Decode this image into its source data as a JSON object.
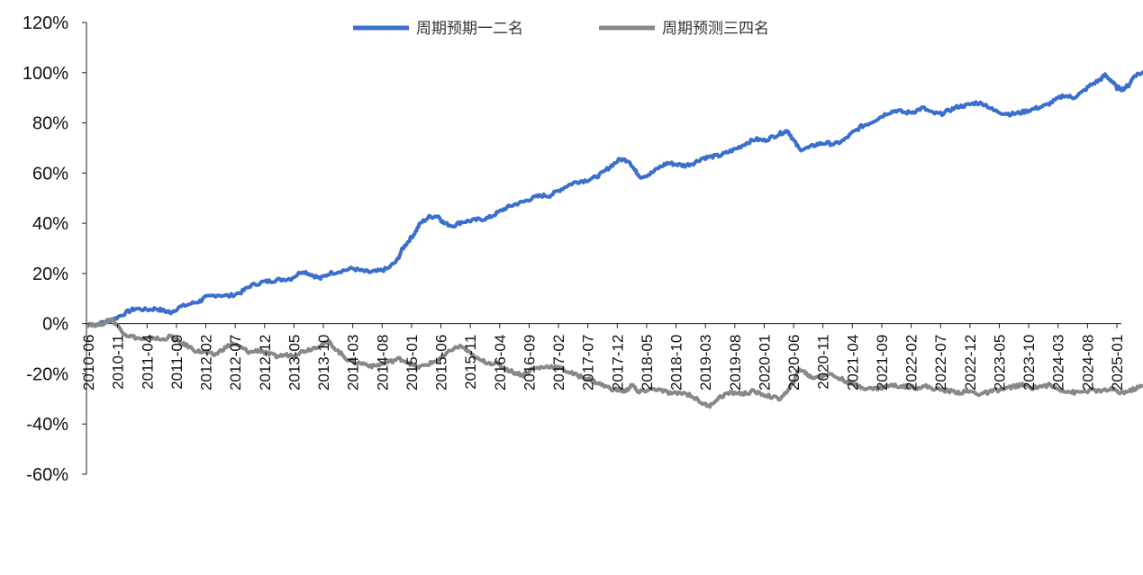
{
  "chart_data": {
    "type": "line",
    "title": "",
    "xlabel": "",
    "ylabel": "",
    "ylim": [
      -60,
      120
    ],
    "y_ticks": [
      120,
      100,
      80,
      60,
      40,
      20,
      0,
      -20,
      -40,
      -60
    ],
    "y_tick_labels": [
      "120%",
      "100%",
      "80%",
      "60%",
      "40%",
      "20%",
      "0%",
      "-20%",
      "-40%",
      "-60%"
    ],
    "x_tick_labels": [
      "2010-06",
      "2010-11",
      "2011-04",
      "2011-09",
      "2012-02",
      "2012-07",
      "2012-12",
      "2013-05",
      "2013-10",
      "2014-03",
      "2014-08",
      "2015-01",
      "2015-06",
      "2015-11",
      "2016-04",
      "2016-09",
      "2017-02",
      "2017-07",
      "2017-12",
      "2018-05",
      "2018-10",
      "2019-03",
      "2019-08",
      "2020-01",
      "2020-06",
      "2020-11",
      "2021-04",
      "2021-09",
      "2022-02",
      "2022-07",
      "2022-12",
      "2023-05",
      "2023-10",
      "2024-03",
      "2024-08",
      "2025-01"
    ],
    "legend_position": "top-center",
    "series": [
      {
        "name": "周期预期一二名",
        "color": "#3A6FCE",
        "points": [
          [
            0,
            0
          ],
          [
            0.3,
            -0.5
          ],
          [
            0.6,
            1
          ],
          [
            0.9,
            2
          ],
          [
            1.3,
            4.5
          ],
          [
            1.6,
            6
          ],
          [
            2,
            5.5
          ],
          [
            2.3,
            6
          ],
          [
            2.6,
            5
          ],
          [
            2.8,
            4.5
          ],
          [
            3.1,
            6.5
          ],
          [
            3.5,
            8
          ],
          [
            3.8,
            9
          ],
          [
            4,
            10.5
          ],
          [
            4.4,
            11.5
          ],
          [
            4.8,
            11
          ],
          [
            5.2,
            12.5
          ],
          [
            5.5,
            15
          ],
          [
            5.9,
            16.5
          ],
          [
            6.2,
            17
          ],
          [
            6.5,
            17.5
          ],
          [
            6.9,
            18
          ],
          [
            7.3,
            21
          ],
          [
            7.6,
            19.5
          ],
          [
            7.9,
            18
          ],
          [
            8.2,
            20
          ],
          [
            8.6,
            21
          ],
          [
            9,
            22
          ],
          [
            9.3,
            21
          ],
          [
            9.6,
            20.5
          ],
          [
            9.9,
            21
          ],
          [
            10.2,
            22
          ],
          [
            10.5,
            25
          ],
          [
            10.7,
            30
          ],
          [
            10.9,
            33
          ],
          [
            11.1,
            36
          ],
          [
            11.3,
            40
          ],
          [
            11.6,
            42.5
          ],
          [
            11.9,
            43
          ],
          [
            12.1,
            40
          ],
          [
            12.4,
            39
          ],
          [
            12.7,
            40.5
          ],
          [
            13,
            41
          ],
          [
            13.3,
            41.5
          ],
          [
            13.6,
            42
          ],
          [
            13.9,
            44
          ],
          [
            14.2,
            46
          ],
          [
            14.5,
            47.5
          ],
          [
            14.8,
            48.5
          ],
          [
            15.1,
            50
          ],
          [
            15.4,
            51
          ],
          [
            15.7,
            51
          ],
          [
            16,
            53
          ],
          [
            16.3,
            55
          ],
          [
            16.6,
            56.5
          ],
          [
            16.9,
            57
          ],
          [
            17.2,
            58
          ],
          [
            17.5,
            60
          ],
          [
            17.8,
            63
          ],
          [
            18.1,
            65.5
          ],
          [
            18.4,
            65
          ],
          [
            18.6,
            61
          ],
          [
            18.8,
            58.5
          ],
          [
            19.1,
            59.5
          ],
          [
            19.4,
            62
          ],
          [
            19.7,
            64
          ],
          [
            20,
            63.5
          ],
          [
            20.3,
            63
          ],
          [
            20.6,
            64
          ],
          [
            20.9,
            66
          ],
          [
            21.2,
            66.5
          ],
          [
            21.5,
            67
          ],
          [
            21.8,
            68.5
          ],
          [
            22.1,
            70
          ],
          [
            22.4,
            72
          ],
          [
            22.7,
            73.5
          ],
          [
            23,
            73
          ],
          [
            23.3,
            74.5
          ],
          [
            23.6,
            76
          ],
          [
            23.8,
            77
          ],
          [
            24,
            73
          ],
          [
            24.2,
            69.5
          ],
          [
            24.5,
            70
          ],
          [
            24.8,
            71.5
          ],
          [
            25.1,
            72
          ],
          [
            25.4,
            71.5
          ],
          [
            25.7,
            73
          ],
          [
            26,
            76
          ],
          [
            26.3,
            78.5
          ],
          [
            26.6,
            80
          ],
          [
            26.9,
            82
          ],
          [
            27.2,
            84
          ],
          [
            27.5,
            85
          ],
          [
            27.8,
            84
          ],
          [
            28.1,
            84.5
          ],
          [
            28.4,
            86
          ],
          [
            28.7,
            84
          ],
          [
            29,
            83.5
          ],
          [
            29.3,
            85
          ],
          [
            29.6,
            86.5
          ],
          [
            29.9,
            87
          ],
          [
            30.2,
            88
          ],
          [
            30.5,
            87.5
          ],
          [
            30.8,
            85
          ],
          [
            31.1,
            84
          ],
          [
            31.4,
            83.5
          ],
          [
            31.7,
            84
          ],
          [
            32,
            85
          ],
          [
            32.3,
            86
          ],
          [
            32.6,
            87
          ],
          [
            32.9,
            89
          ],
          [
            33.2,
            91
          ],
          [
            33.5,
            90
          ],
          [
            33.8,
            92
          ],
          [
            34.1,
            95
          ],
          [
            34.4,
            97
          ],
          [
            34.6,
            99
          ],
          [
            34.8,
            97
          ],
          [
            35,
            94
          ],
          [
            35.2,
            93.5
          ],
          [
            35.4,
            95
          ],
          [
            35.6,
            99
          ],
          [
            35.9,
            100
          ],
          [
            36.2,
            100.5
          ],
          [
            36.4,
            100.5
          ]
        ]
      },
      {
        "name": "周期预测三四名",
        "color": "#888888",
        "points": [
          [
            0,
            0
          ],
          [
            0.3,
            -0.5
          ],
          [
            0.6,
            0.5
          ],
          [
            0.8,
            2
          ],
          [
            1,
            -1
          ],
          [
            1.3,
            -4.5
          ],
          [
            1.6,
            -5.5
          ],
          [
            1.9,
            -6.5
          ],
          [
            2.2,
            -5.5
          ],
          [
            2.5,
            -6.5
          ],
          [
            2.8,
            -5
          ],
          [
            3.1,
            -7.5
          ],
          [
            3.4,
            -9
          ],
          [
            3.7,
            -11
          ],
          [
            4,
            -11.5
          ],
          [
            4.3,
            -12.5
          ],
          [
            4.6,
            -10
          ],
          [
            4.9,
            -8
          ],
          [
            5.2,
            -9.5
          ],
          [
            5.5,
            -11.5
          ],
          [
            5.8,
            -10.5
          ],
          [
            6.1,
            -12
          ],
          [
            6.4,
            -13
          ],
          [
            6.7,
            -12.5
          ],
          [
            7,
            -12.5
          ],
          [
            7.3,
            -11
          ],
          [
            7.6,
            -10
          ],
          [
            7.9,
            -8.5
          ],
          [
            8.2,
            -7.5
          ],
          [
            8.5,
            -11
          ],
          [
            8.8,
            -14
          ],
          [
            9.1,
            -15.5
          ],
          [
            9.4,
            -16
          ],
          [
            9.7,
            -17
          ],
          [
            10,
            -16
          ],
          [
            10.3,
            -15
          ],
          [
            10.6,
            -14
          ],
          [
            10.9,
            -15.5
          ],
          [
            11.2,
            -17.5
          ],
          [
            11.5,
            -16.5
          ],
          [
            11.8,
            -15
          ],
          [
            12.1,
            -13
          ],
          [
            12.4,
            -10
          ],
          [
            12.7,
            -9
          ],
          [
            13,
            -12
          ],
          [
            13.3,
            -14.5
          ],
          [
            13.6,
            -15.5
          ],
          [
            13.9,
            -16
          ],
          [
            14.2,
            -18
          ],
          [
            14.5,
            -19.5
          ],
          [
            14.8,
            -20.5
          ],
          [
            15.1,
            -18
          ],
          [
            15.4,
            -17.5
          ],
          [
            15.7,
            -17
          ],
          [
            16,
            -17.5
          ],
          [
            16.3,
            -19
          ],
          [
            16.6,
            -20.5
          ],
          [
            16.9,
            -21.5
          ],
          [
            17.2,
            -23
          ],
          [
            17.5,
            -24.5
          ],
          [
            17.8,
            -26
          ],
          [
            18.1,
            -26.5
          ],
          [
            18.3,
            -27
          ],
          [
            18.5,
            -24
          ],
          [
            18.7,
            -27.5
          ],
          [
            19,
            -26.5
          ],
          [
            19.3,
            -26
          ],
          [
            19.6,
            -27
          ],
          [
            19.9,
            -28
          ],
          [
            20.2,
            -27.5
          ],
          [
            20.5,
            -28.5
          ],
          [
            20.8,
            -31
          ],
          [
            21.1,
            -33
          ],
          [
            21.4,
            -30
          ],
          [
            21.7,
            -28
          ],
          [
            22,
            -27.5
          ],
          [
            22.3,
            -28
          ],
          [
            22.6,
            -27
          ],
          [
            22.9,
            -28
          ],
          [
            23.2,
            -29
          ],
          [
            23.5,
            -30
          ],
          [
            23.8,
            -27
          ],
          [
            24,
            -23
          ],
          [
            24.2,
            -18
          ],
          [
            24.4,
            -19.5
          ],
          [
            24.6,
            -21.5
          ],
          [
            24.9,
            -21
          ],
          [
            25.2,
            -20
          ],
          [
            25.5,
            -21.5
          ],
          [
            25.8,
            -23
          ],
          [
            26.1,
            -24.5
          ],
          [
            26.4,
            -25.5
          ],
          [
            26.7,
            -26
          ],
          [
            27,
            -25.5
          ],
          [
            27.3,
            -24.5
          ],
          [
            27.6,
            -25
          ],
          [
            27.9,
            -25
          ],
          [
            28.2,
            -25.5
          ],
          [
            28.5,
            -25
          ],
          [
            28.8,
            -26
          ],
          [
            29.1,
            -26.5
          ],
          [
            29.4,
            -27
          ],
          [
            29.7,
            -27.5
          ],
          [
            30,
            -27
          ],
          [
            30.3,
            -28
          ],
          [
            30.6,
            -27.5
          ],
          [
            30.9,
            -26.5
          ],
          [
            31.2,
            -26
          ],
          [
            31.5,
            -25
          ],
          [
            31.8,
            -24.5
          ],
          [
            32.1,
            -25.5
          ],
          [
            32.4,
            -25
          ],
          [
            32.7,
            -24.5
          ],
          [
            33,
            -26
          ],
          [
            33.3,
            -27
          ],
          [
            33.6,
            -27.5
          ],
          [
            33.9,
            -27
          ],
          [
            34.2,
            -26.5
          ],
          [
            34.5,
            -27
          ],
          [
            34.8,
            -26
          ],
          [
            35.1,
            -27.5
          ],
          [
            35.4,
            -27
          ],
          [
            35.7,
            -25.5
          ],
          [
            36,
            -24.5
          ],
          [
            36.2,
            -23.5
          ],
          [
            36.4,
            -24
          ]
        ]
      }
    ]
  }
}
